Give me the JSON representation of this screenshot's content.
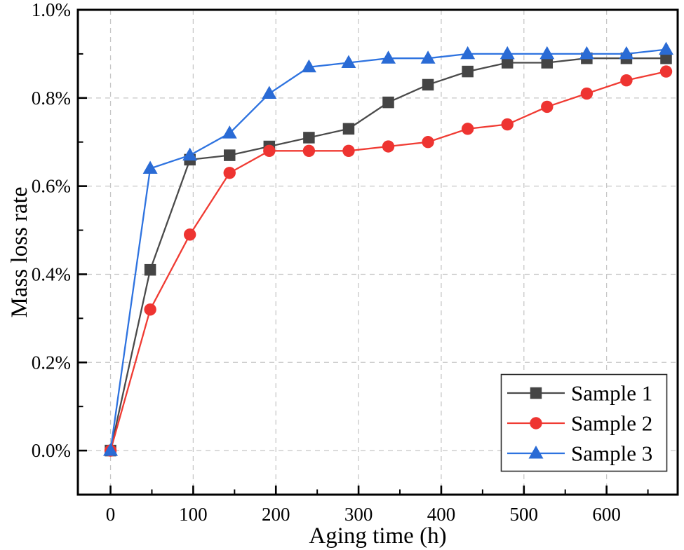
{
  "chart_data": {
    "type": "line",
    "title": "",
    "xlabel": "Aging time (h)",
    "ylabel": "Mass loss rate",
    "x": [
      0,
      48,
      96,
      144,
      192,
      240,
      288,
      336,
      384,
      432,
      480,
      528,
      576,
      624,
      672
    ],
    "series": [
      {
        "name": "Sample 1",
        "marker": "square",
        "color": "#454545",
        "line_color": "#4a4a4a",
        "values": [
          0.0,
          0.41,
          0.66,
          0.67,
          0.69,
          0.71,
          0.73,
          0.79,
          0.83,
          0.86,
          0.88,
          0.88,
          0.89,
          0.89,
          0.89
        ]
      },
      {
        "name": "Sample 2",
        "marker": "circle",
        "color": "#ee3431",
        "line_color": "#f03b33",
        "values": [
          0.0,
          0.32,
          0.49,
          0.63,
          0.68,
          0.68,
          0.68,
          0.69,
          0.7,
          0.73,
          0.74,
          0.78,
          0.81,
          0.84,
          0.86
        ]
      },
      {
        "name": "Sample 3",
        "marker": "triangle",
        "color": "#2a6bd5",
        "line_color": "#2e73e0",
        "values": [
          0.0,
          0.64,
          0.67,
          0.72,
          0.81,
          0.87,
          0.88,
          0.89,
          0.89,
          0.9,
          0.9,
          0.9,
          0.9,
          0.9,
          0.91
        ]
      }
    ],
    "y_units": "percent",
    "x_ticks": {
      "values": [
        0,
        100,
        200,
        300,
        400,
        500,
        600
      ],
      "labels": [
        "0",
        "100",
        "200",
        "300",
        "400",
        "500",
        "600"
      ],
      "minor": [
        50,
        150,
        250,
        350,
        450,
        550,
        650
      ]
    },
    "y_ticks": {
      "values": [
        0.0,
        0.2,
        0.4,
        0.6,
        0.8,
        1.0
      ],
      "labels": [
        "0.0%",
        "0.2%",
        "0.4%",
        "0.6%",
        "0.8%",
        "1.0%"
      ],
      "minor": [
        0.1,
        0.3,
        0.5,
        0.7,
        0.9
      ]
    },
    "xlim": [
      -39.5,
      686
    ],
    "ylim": [
      -0.1,
      1.0
    ],
    "grid": true,
    "grid_style": "dashed",
    "grid_color": "#c6c6c6",
    "axis_color": "#000000",
    "background_color": "#ffffff",
    "legend": {
      "position": "lower right",
      "entries": [
        "Sample 1",
        "Sample 2",
        "Sample 3"
      ]
    }
  }
}
